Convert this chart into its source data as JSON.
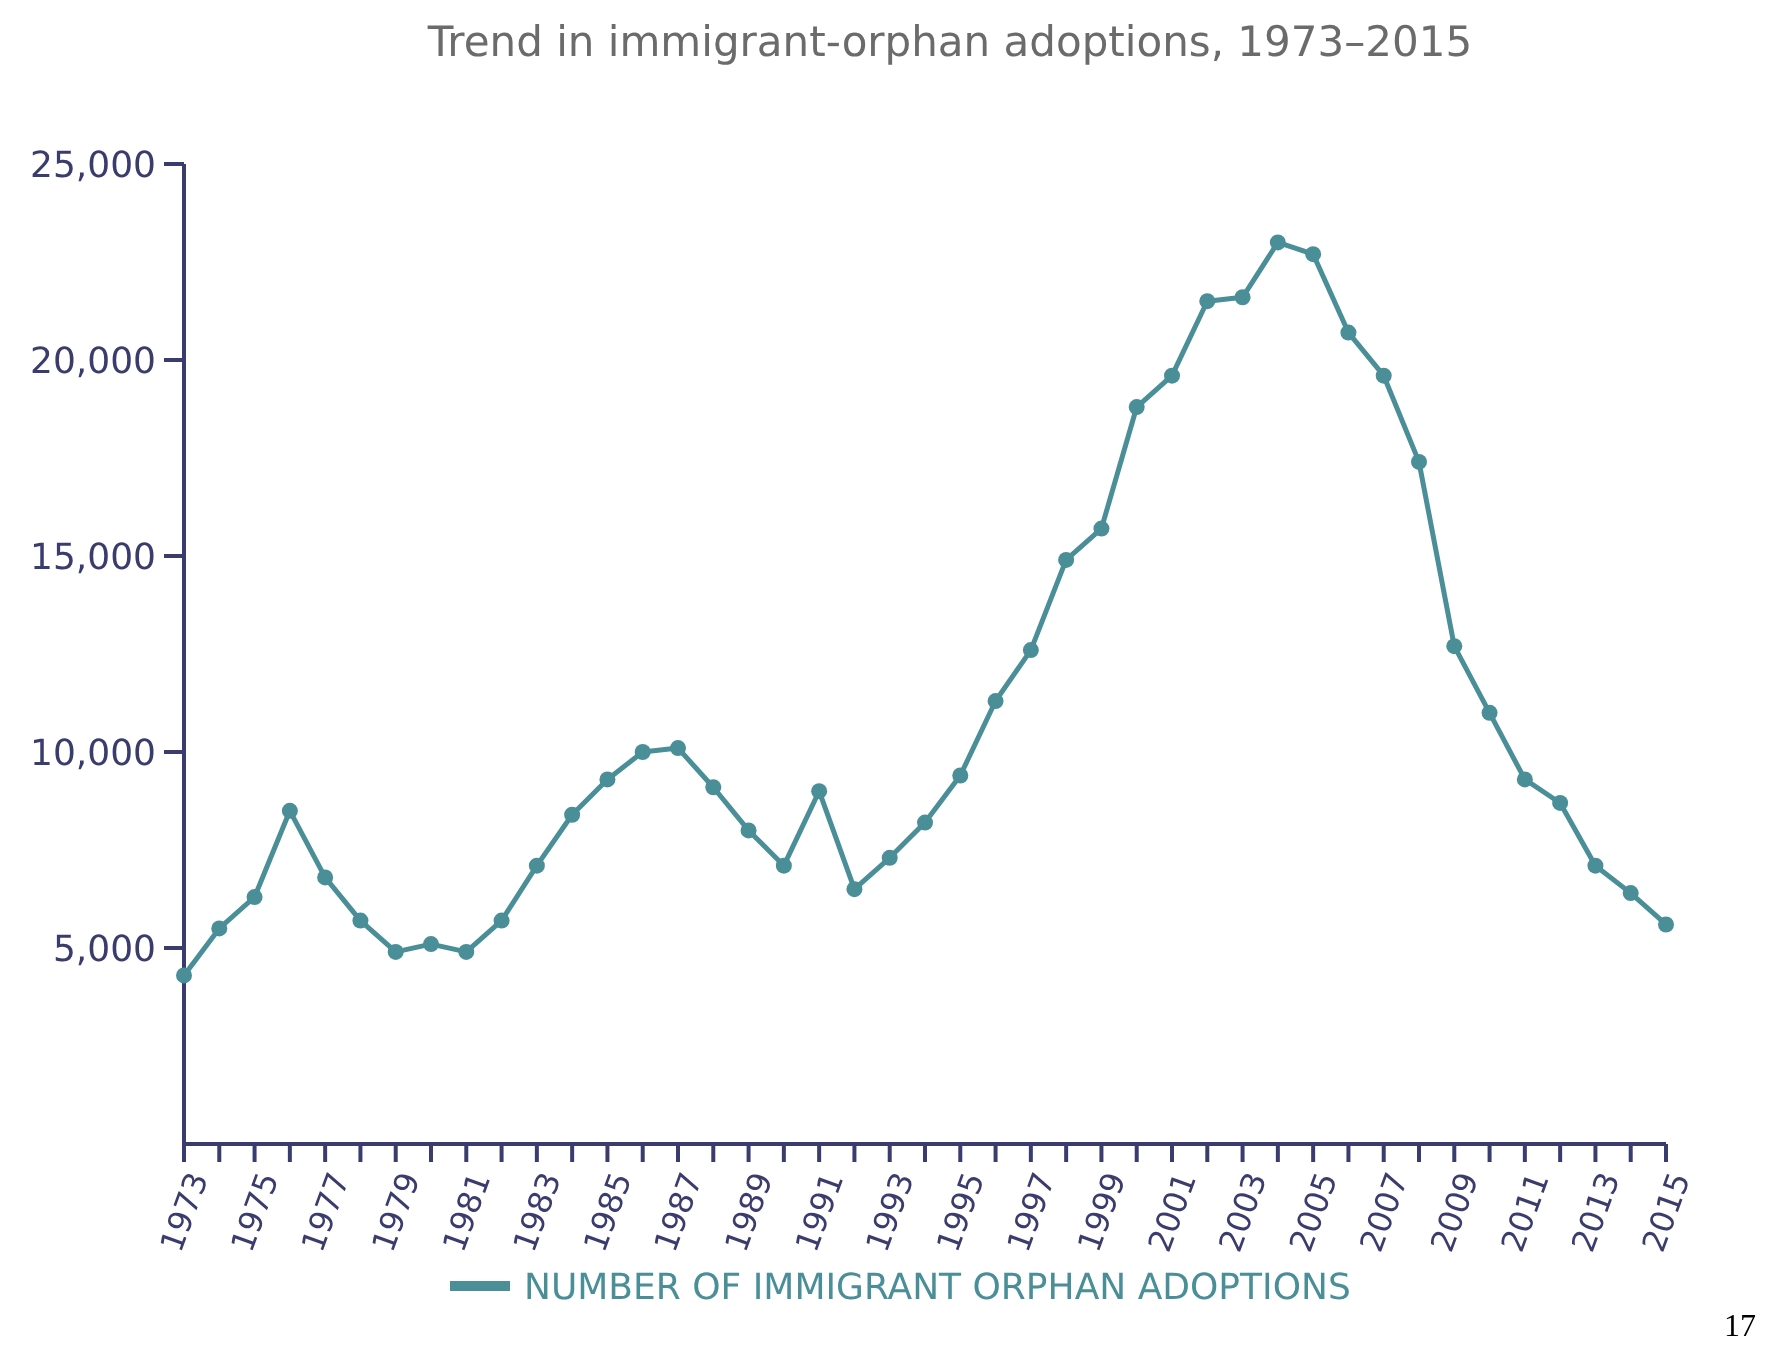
{
  "chart_data": {
    "type": "line",
    "title": "Trend in immigrant-orphan adoptions, 1973–2015",
    "x": [
      1973,
      1974,
      1975,
      1976,
      1977,
      1978,
      1979,
      1980,
      1981,
      1982,
      1983,
      1984,
      1985,
      1986,
      1987,
      1988,
      1989,
      1990,
      1991,
      1992,
      1993,
      1994,
      1995,
      1996,
      1997,
      1998,
      1999,
      2000,
      2001,
      2002,
      2003,
      2004,
      2005,
      2006,
      2007,
      2008,
      2009,
      2010,
      2011,
      2012,
      2013,
      2014,
      2015
    ],
    "series": [
      {
        "name": "NUMBER OF IMMIGRANT ORPHAN ADOPTIONS",
        "color": "#4a8e98",
        "values": [
          4300,
          5500,
          6300,
          8500,
          6800,
          5700,
          4900,
          5100,
          4900,
          5700,
          7100,
          8400,
          9300,
          10000,
          10100,
          9100,
          8000,
          7100,
          9000,
          6500,
          7300,
          8200,
          9400,
          11300,
          12600,
          14900,
          15700,
          18800,
          19600,
          21500,
          21600,
          23000,
          22700,
          20700,
          19600,
          17400,
          12700,
          11000,
          9300,
          8700,
          7100,
          6400,
          5600
        ]
      }
    ],
    "xlim": [
      1973,
      2015
    ],
    "xticks": [
      1973,
      {
        "value": 1974,
        "label": null
      },
      1975,
      {
        "value": 1976,
        "label": null
      },
      1977,
      {
        "value": 1978,
        "label": null
      },
      1979,
      {
        "value": 1980,
        "label": null
      },
      1981,
      {
        "value": 1982,
        "label": null
      },
      1983,
      {
        "value": 1984,
        "label": null
      },
      1985,
      {
        "value": 1986,
        "label": null
      },
      1987,
      {
        "value": 1988,
        "label": null
      },
      1989,
      {
        "value": 1990,
        "label": null
      },
      1991,
      {
        "value": 1992,
        "label": null
      },
      1993,
      {
        "value": 1994,
        "label": null
      },
      1995,
      {
        "value": 1996,
        "label": null
      },
      1997,
      {
        "value": 1998,
        "label": null
      },
      1999,
      {
        "value": 2000,
        "label": null
      },
      2001,
      {
        "value": 2002,
        "label": null
      },
      2003,
      {
        "value": 2004,
        "label": null
      },
      2005,
      {
        "value": 2006,
        "label": null
      },
      2007,
      {
        "value": 2008,
        "label": null
      },
      2009,
      {
        "value": 2010,
        "label": null
      },
      2011,
      {
        "value": 2012,
        "label": null
      },
      2013,
      {
        "value": 2014,
        "label": null
      },
      2015
    ],
    "ylim": [
      0,
      25000
    ],
    "yticks": [
      {
        "value": 5000,
        "label": "5,000"
      },
      {
        "value": 10000,
        "label": "10,000"
      },
      {
        "value": 15000,
        "label": "15,000"
      },
      {
        "value": 20000,
        "label": "20,000"
      },
      {
        "value": 25000,
        "label": "25,000"
      }
    ],
    "grid": false,
    "legend": "bottom",
    "marker": "circle",
    "line_style": "solid",
    "annotations": [
      "17"
    ]
  }
}
